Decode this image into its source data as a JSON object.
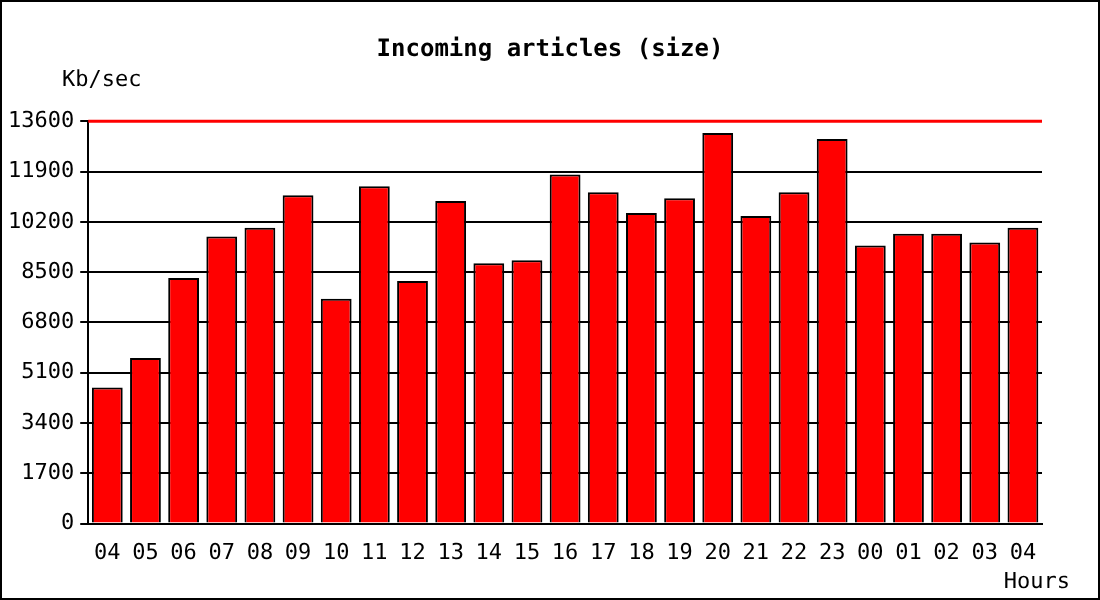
{
  "chart_data": {
    "type": "bar",
    "title": "Incoming articles (size)",
    "ylabel": "Kb/sec",
    "xlabel": "Hours",
    "categories": [
      "04",
      "05",
      "06",
      "07",
      "08",
      "09",
      "10",
      "11",
      "12",
      "13",
      "14",
      "15",
      "16",
      "17",
      "18",
      "19",
      "20",
      "21",
      "22",
      "23",
      "00",
      "01",
      "02",
      "03",
      "04"
    ],
    "values": [
      4600,
      5600,
      8300,
      9700,
      10000,
      11100,
      7600,
      11400,
      8200,
      10900,
      8800,
      8900,
      11800,
      11200,
      10500,
      11000,
      13200,
      10400,
      11200,
      13000,
      9400,
      9800,
      9800,
      9500,
      10000
    ],
    "color": "#ff0000",
    "ylim": [
      0,
      13600
    ],
    "yticks": [
      0,
      1700,
      3400,
      5100,
      6800,
      8500,
      10200,
      11900,
      13600
    ],
    "grid": "y",
    "ref_lines": [
      {
        "axis": "y",
        "value": 13600,
        "color": "#ff0000"
      }
    ]
  }
}
